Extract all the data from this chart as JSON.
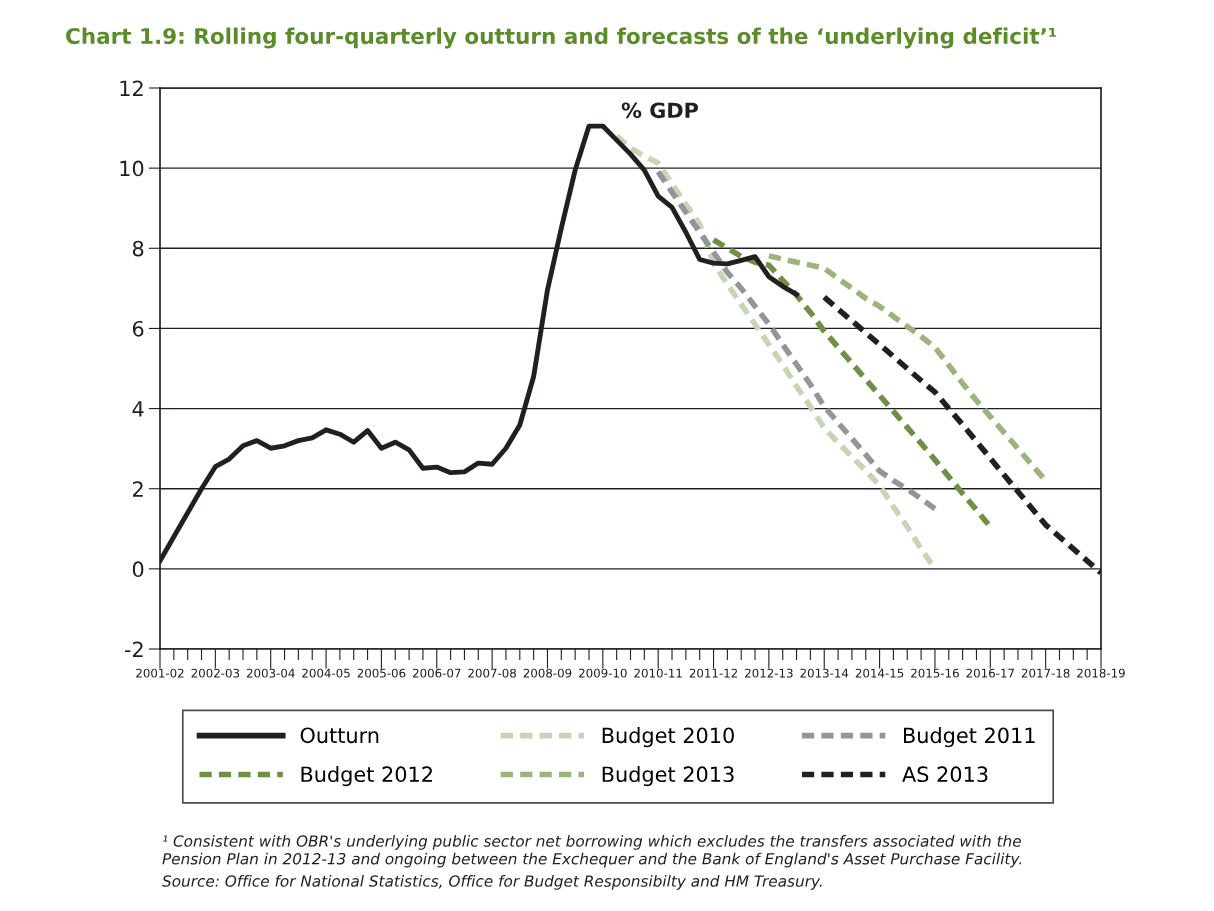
{
  "chart_data": {
    "type": "line",
    "title": "Chart 1.9: Rolling four-quarterly outturn and forecasts of the ‘underlying deficit’¹",
    "ylabel": "% GDP",
    "ylim": [
      -2,
      12
    ],
    "yticks": [
      -2,
      0,
      2,
      4,
      6,
      8,
      10,
      12
    ],
    "categories": [
      "2001-02",
      null,
      null,
      null,
      "2002-03",
      null,
      null,
      null,
      "2003-04",
      null,
      null,
      null,
      "2004-05",
      null,
      null,
      null,
      "2005-06",
      null,
      null,
      null,
      "2006-07",
      null,
      null,
      null,
      "2007-08",
      null,
      null,
      null,
      "2008-09",
      null,
      null,
      null,
      "2009-10",
      null,
      null,
      null,
      "2010-11",
      null,
      null,
      null,
      "2011-12",
      null,
      null,
      null,
      "2012-13",
      null,
      null,
      null,
      "2013-14",
      null,
      null,
      null,
      "2014-15",
      null,
      null,
      null,
      "2015-16",
      null,
      null,
      null,
      "2016-17",
      null,
      null,
      null,
      "2017-18",
      null,
      null,
      null,
      "2018-19"
    ],
    "grid": "y",
    "legend": "bottom",
    "marker": "none",
    "series": [
      {
        "name": "Outturn",
        "color": "#231f20",
        "line_style": "solid",
        "values": [
          0.2,
          0.8,
          1.4,
          2.0,
          2.55,
          2.74,
          3.07,
          3.2,
          3.01,
          3.07,
          3.2,
          3.27,
          3.47,
          3.36,
          3.16,
          3.45,
          3.01,
          3.16,
          2.97,
          2.51,
          2.54,
          2.4,
          2.42,
          2.64,
          2.61,
          3.01,
          3.59,
          4.8,
          6.96,
          8.5,
          9.95,
          11.05,
          11.05,
          10.7,
          10.35,
          9.95,
          9.3,
          9.02,
          8.4,
          7.72,
          7.63,
          7.61,
          7.7,
          7.79,
          7.29,
          7.05,
          6.85,
          null,
          null,
          null,
          null,
          null,
          null,
          null,
          null,
          null,
          null,
          null,
          null,
          null,
          null,
          null,
          null,
          null,
          null,
          null,
          null,
          null,
          null
        ]
      },
      {
        "name": "Budget 2010",
        "color": "#c5d5b5",
        "line_style": "dashed",
        "values": [
          null,
          null,
          null,
          null,
          null,
          null,
          null,
          null,
          null,
          null,
          null,
          null,
          null,
          null,
          null,
          null,
          null,
          null,
          null,
          null,
          null,
          null,
          null,
          null,
          null,
          null,
          null,
          null,
          null,
          null,
          null,
          null,
          null,
          10.8,
          10.5,
          10.3,
          10.13,
          9.6,
          9.1,
          8.6,
          7.63,
          7.1,
          6.6,
          6.1,
          5.6,
          5.1,
          4.55,
          4.05,
          3.52,
          3.15,
          2.8,
          2.45,
          2.08,
          1.55,
          1.05,
          0.5,
          0,
          null,
          null,
          null,
          null,
          null,
          null,
          null,
          null,
          null,
          null,
          null,
          null
        ]
      },
      {
        "name": "Budget 2011",
        "color": "#939598",
        "line_style": "dashed",
        "values": [
          null,
          null,
          null,
          null,
          null,
          null,
          null,
          null,
          null,
          null,
          null,
          null,
          null,
          null,
          null,
          null,
          null,
          null,
          null,
          null,
          null,
          null,
          null,
          null,
          null,
          null,
          null,
          null,
          null,
          null,
          null,
          null,
          null,
          null,
          null,
          null,
          9.91,
          9.4,
          8.9,
          8.4,
          7.9,
          7.4,
          7.0,
          6.55,
          6.11,
          5.6,
          5.1,
          4.6,
          4.05,
          3.65,
          3.25,
          2.85,
          2.44,
          2.2,
          1.99,
          1.75,
          1.5,
          null,
          null,
          null,
          null,
          null,
          null,
          null,
          null,
          null,
          null,
          null,
          null
        ]
      },
      {
        "name": "Budget 2012",
        "color": "#6f8f45",
        "line_style": "dashed",
        "values": [
          null,
          null,
          null,
          null,
          null,
          null,
          null,
          null,
          null,
          null,
          null,
          null,
          null,
          null,
          null,
          null,
          null,
          null,
          null,
          null,
          null,
          null,
          null,
          null,
          null,
          null,
          null,
          null,
          null,
          null,
          null,
          null,
          null,
          null,
          null,
          null,
          null,
          null,
          null,
          null,
          8.21,
          8.0,
          7.8,
          7.65,
          7.58,
          7.2,
          6.83,
          6.4,
          5.93,
          5.53,
          5.13,
          4.73,
          4.33,
          3.93,
          3.53,
          3.13,
          2.72,
          2.3,
          1.88,
          1.47,
          1.05,
          null,
          null,
          null,
          null,
          null,
          null,
          null,
          null
        ]
      },
      {
        "name": "Budget 2013",
        "color": "#9cb37c",
        "line_style": "dashed",
        "values": [
          null,
          null,
          null,
          null,
          null,
          null,
          null,
          null,
          null,
          null,
          null,
          null,
          null,
          null,
          null,
          null,
          null,
          null,
          null,
          null,
          null,
          null,
          null,
          null,
          null,
          null,
          null,
          null,
          null,
          null,
          null,
          null,
          null,
          null,
          null,
          null,
          null,
          null,
          null,
          null,
          null,
          null,
          null,
          null,
          7.81,
          7.73,
          7.65,
          7.58,
          7.5,
          7.25,
          7.0,
          6.75,
          6.55,
          6.3,
          6.05,
          5.8,
          5.53,
          5.08,
          4.63,
          4.2,
          3.8,
          3.4,
          3.0,
          2.6,
          2.2,
          null,
          null,
          null,
          null
        ]
      },
      {
        "name": "AS 2013",
        "color": "#231f20",
        "line_style": "dashed",
        "values": [
          null,
          null,
          null,
          null,
          null,
          null,
          null,
          null,
          null,
          null,
          null,
          null,
          null,
          null,
          null,
          null,
          null,
          null,
          null,
          null,
          null,
          null,
          null,
          null,
          null,
          null,
          null,
          null,
          null,
          null,
          null,
          null,
          null,
          null,
          null,
          null,
          null,
          null,
          null,
          null,
          null,
          null,
          null,
          null,
          null,
          null,
          null,
          null,
          6.78,
          6.48,
          6.19,
          5.89,
          5.6,
          5.3,
          5.0,
          4.7,
          4.41,
          4.0,
          3.6,
          3.18,
          2.76,
          2.34,
          1.93,
          1.51,
          1.1,
          0.8,
          0.5,
          0.2,
          -0.1
        ]
      }
    ],
    "annotations": [
      "¹ Consistent with OBR's underlying public sector net borrowing which excludes the transfers associated with the\nPension Plan in 2012-13 and ongoing between the Exchequer and the Bank of England's Asset Purchase Facility.",
      "Source: Office for National Statistics, Office for Budget Responsibilty and HM Treasury."
    ]
  }
}
